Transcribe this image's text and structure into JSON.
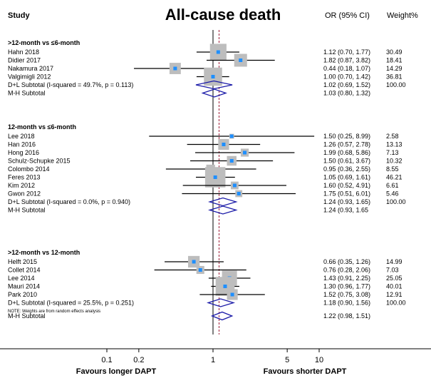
{
  "chart_data": {
    "type": "forest",
    "title": "All-cause death",
    "headers": {
      "study": "Study",
      "effect": "OR (95% CI)",
      "weight": "Weight%"
    },
    "x_scale": "log",
    "xlim": [
      0.05,
      12
    ],
    "x_ticks": [
      0.1,
      0.2,
      1,
      5,
      10
    ],
    "x_tick_labels": [
      "0.1",
      "0.2",
      "1",
      "5",
      "10"
    ],
    "reference_line": 1,
    "overall_line": 1.14,
    "favours_left": "Favours longer DAPT",
    "favours_right": "Favours shorter DAPT",
    "note": "NOTE: Weights are from random effects analysis",
    "groups": [
      {
        "label": ">12-month vs ≤6-month",
        "studies": [
          {
            "name": "Hahn 2018",
            "or": 1.12,
            "lo": 0.7,
            "hi": 1.77,
            "ci_text": "1.12 (0.70, 1.77)",
            "weight": "30.49"
          },
          {
            "name": "Didier 2017",
            "or": 1.82,
            "lo": 0.87,
            "hi": 3.82,
            "ci_text": "1.82 (0.87, 3.82)",
            "weight": "18.41"
          },
          {
            "name": "Nakamura 2017",
            "or": 0.44,
            "lo": 0.18,
            "hi": 1.07,
            "ci_text": "0.44 (0.18, 1.07)",
            "weight": "14.29"
          },
          {
            "name": "Valgimigli 2012",
            "or": 1.0,
            "lo": 0.7,
            "hi": 1.42,
            "ci_text": "1.00 (0.70, 1.42)",
            "weight": "36.81"
          }
        ],
        "dl": {
          "label": "D+L Subtotal  (I-squared = 49.7%, p = 0.113)",
          "or": 1.02,
          "lo": 0.69,
          "hi": 1.52,
          "ci_text": "1.02 (0.69, 1.52)",
          "weight": "100.00"
        },
        "mh": {
          "label": "M-H Subtotal",
          "or": 1.03,
          "lo": 0.8,
          "hi": 1.32,
          "ci_text": "1.03 (0.80, 1.32)"
        }
      },
      {
        "label": "12-month vs ≤6-month",
        "studies": [
          {
            "name": "Lee 2018",
            "or": 1.5,
            "lo": 0.25,
            "hi": 8.99,
            "ci_text": "1.50 (0.25, 8.99)",
            "weight": "2.58"
          },
          {
            "name": "Han 2016",
            "or": 1.26,
            "lo": 0.57,
            "hi": 2.78,
            "ci_text": "1.26 (0.57, 2.78)",
            "weight": "13.13"
          },
          {
            "name": "Hong 2016",
            "or": 1.99,
            "lo": 0.68,
            "hi": 5.86,
            "ci_text": "1.99 (0.68, 5.86)",
            "weight": "7.13"
          },
          {
            "name": "Schulz-Schupke 2015",
            "or": 1.5,
            "lo": 0.61,
            "hi": 3.67,
            "ci_text": "1.50 (0.61, 3.67)",
            "weight": "10.32"
          },
          {
            "name": "Colombo 2014",
            "or": 0.95,
            "lo": 0.36,
            "hi": 2.55,
            "ci_text": "0.95 (0.36, 2.55)",
            "weight": "8.55"
          },
          {
            "name": "Feres 2013",
            "or": 1.05,
            "lo": 0.69,
            "hi": 1.61,
            "ci_text": "1.05 (0.69, 1.61)",
            "weight": "46.21"
          },
          {
            "name": "Kim 2012",
            "or": 1.6,
            "lo": 0.52,
            "hi": 4.91,
            "ci_text": "1.60 (0.52, 4.91)",
            "weight": "6.61"
          },
          {
            "name": "Gwon 2012",
            "or": 1.75,
            "lo": 0.51,
            "hi": 6.01,
            "ci_text": "1.75 (0.51, 6.01)",
            "weight": "5.46"
          }
        ],
        "dl": {
          "label": "D+L Subtotal  (I-squared = 0.0%, p = 0.940)",
          "or": 1.24,
          "lo": 0.93,
          "hi": 1.65,
          "ci_text": "1.24 (0.93, 1.65)",
          "weight": "100.00"
        },
        "mh": {
          "label": "M-H Subtotal",
          "or": 1.24,
          "lo": 0.93,
          "hi": 1.65,
          "ci_text": "1.24 (0.93, 1.65"
        }
      },
      {
        "label": ">12-month vs 12-month",
        "studies": [
          {
            "name": "Helft 2015",
            "or": 0.66,
            "lo": 0.35,
            "hi": 1.26,
            "ci_text": "0.66 (0.35, 1.26)",
            "weight": "14.99"
          },
          {
            "name": "Collet 2014",
            "or": 0.76,
            "lo": 0.28,
            "hi": 2.06,
            "ci_text": "0.76 (0.28, 2.06)",
            "weight": "7.03"
          },
          {
            "name": "Lee 2014",
            "or": 1.43,
            "lo": 0.91,
            "hi": 2.25,
            "ci_text": "1.43 (0.91, 2.25)",
            "weight": "25.05"
          },
          {
            "name": "Mauri 2014",
            "or": 1.3,
            "lo": 0.96,
            "hi": 1.77,
            "ci_text": "1.30 (0.96, 1.77)",
            "weight": "40.01"
          },
          {
            "name": "Park 2010",
            "or": 1.52,
            "lo": 0.75,
            "hi": 3.08,
            "ci_text": "1.52 (0.75, 3.08)",
            "weight": "12.91"
          }
        ],
        "dl": {
          "label": "D+L Subtotal  (I-squared = 25.5%, p = 0.251)",
          "or": 1.18,
          "lo": 0.9,
          "hi": 1.56,
          "ci_text": "1.18 (0.90, 1.56)",
          "weight": "100.00"
        },
        "mh": {
          "label": "M-H Subtotal",
          "or": 1.22,
          "lo": 0.98,
          "hi": 1.51,
          "ci_text": "1.22 (0.98, 1.51)"
        }
      }
    ],
    "colors": {
      "box": "#bdbdbd",
      "point": "#1e8fff",
      "diamond": "#1a1aa8",
      "overall_line": "#a0203a",
      "line": "#000000"
    }
  }
}
